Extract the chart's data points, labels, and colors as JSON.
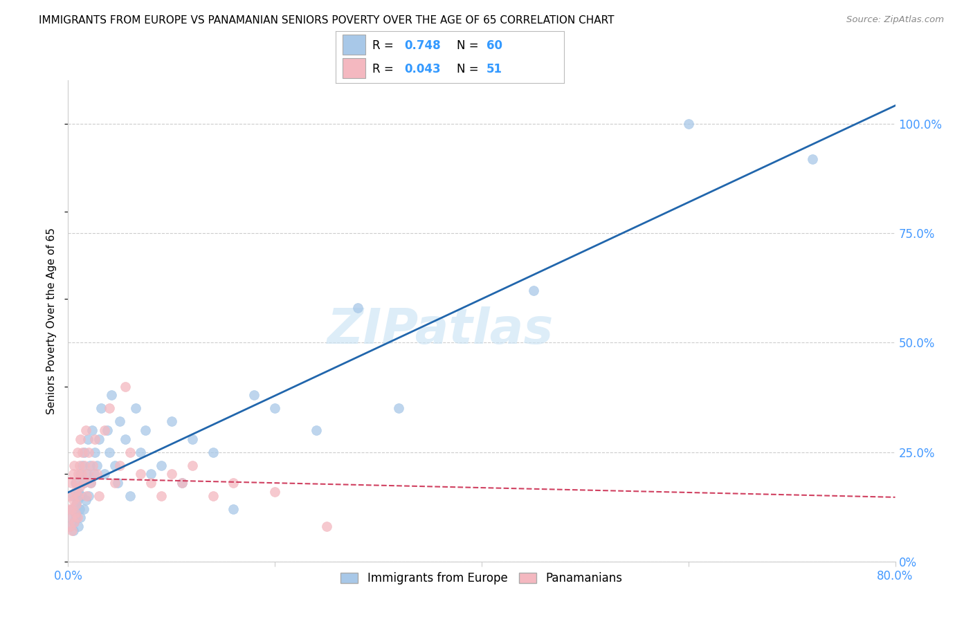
{
  "title": "IMMIGRANTS FROM EUROPE VS PANAMANIAN SENIORS POVERTY OVER THE AGE OF 65 CORRELATION CHART",
  "source": "Source: ZipAtlas.com",
  "ylabel": "Seniors Poverty Over the Age of 65",
  "legend_blue_label": "Immigrants from Europe",
  "legend_pink_label": "Panamanians",
  "r_blue": "0.748",
  "n_blue": "60",
  "r_pink": "0.043",
  "n_pink": "51",
  "blue_color": "#a8c8e8",
  "pink_color": "#f4b8c0",
  "blue_line_color": "#2166ac",
  "pink_line_color": "#d04060",
  "watermark": "ZIPatlas",
  "blue_scatter_x": [
    0.002,
    0.003,
    0.004,
    0.005,
    0.005,
    0.006,
    0.007,
    0.007,
    0.008,
    0.008,
    0.009,
    0.01,
    0.01,
    0.011,
    0.012,
    0.012,
    0.013,
    0.014,
    0.015,
    0.015,
    0.016,
    0.017,
    0.018,
    0.019,
    0.02,
    0.021,
    0.022,
    0.023,
    0.025,
    0.026,
    0.028,
    0.03,
    0.032,
    0.035,
    0.038,
    0.04,
    0.042,
    0.045,
    0.048,
    0.05,
    0.055,
    0.06,
    0.065,
    0.07,
    0.075,
    0.08,
    0.09,
    0.1,
    0.11,
    0.12,
    0.14,
    0.16,
    0.18,
    0.2,
    0.24,
    0.28,
    0.32,
    0.45,
    0.6,
    0.72
  ],
  "blue_scatter_y": [
    0.08,
    0.1,
    0.12,
    0.07,
    0.15,
    0.09,
    0.11,
    0.18,
    0.1,
    0.13,
    0.14,
    0.08,
    0.16,
    0.12,
    0.2,
    0.1,
    0.15,
    0.22,
    0.12,
    0.18,
    0.25,
    0.14,
    0.2,
    0.28,
    0.15,
    0.22,
    0.18,
    0.3,
    0.2,
    0.25,
    0.22,
    0.28,
    0.35,
    0.2,
    0.3,
    0.25,
    0.38,
    0.22,
    0.18,
    0.32,
    0.28,
    0.15,
    0.35,
    0.25,
    0.3,
    0.2,
    0.22,
    0.32,
    0.18,
    0.28,
    0.25,
    0.12,
    0.38,
    0.35,
    0.3,
    0.58,
    0.35,
    0.62,
    1.0,
    0.92
  ],
  "pink_scatter_x": [
    0.001,
    0.002,
    0.002,
    0.003,
    0.003,
    0.004,
    0.004,
    0.005,
    0.005,
    0.006,
    0.006,
    0.007,
    0.007,
    0.008,
    0.008,
    0.009,
    0.009,
    0.01,
    0.01,
    0.011,
    0.011,
    0.012,
    0.013,
    0.014,
    0.015,
    0.016,
    0.017,
    0.018,
    0.019,
    0.02,
    0.022,
    0.024,
    0.026,
    0.028,
    0.03,
    0.035,
    0.04,
    0.045,
    0.05,
    0.055,
    0.06,
    0.07,
    0.08,
    0.09,
    0.1,
    0.11,
    0.12,
    0.14,
    0.16,
    0.2,
    0.25
  ],
  "pink_scatter_y": [
    0.12,
    0.08,
    0.15,
    0.1,
    0.18,
    0.07,
    0.12,
    0.2,
    0.14,
    0.09,
    0.22,
    0.16,
    0.11,
    0.18,
    0.13,
    0.25,
    0.1,
    0.2,
    0.15,
    0.22,
    0.17,
    0.28,
    0.2,
    0.25,
    0.18,
    0.22,
    0.3,
    0.15,
    0.2,
    0.25,
    0.18,
    0.22,
    0.28,
    0.2,
    0.15,
    0.3,
    0.35,
    0.18,
    0.22,
    0.4,
    0.25,
    0.2,
    0.18,
    0.15,
    0.2,
    0.18,
    0.22,
    0.15,
    0.18,
    0.16,
    0.08
  ],
  "xlim": [
    0.0,
    0.8
  ],
  "ylim": [
    0.0,
    1.1
  ],
  "right_ytick_vals": [
    0.0,
    0.25,
    0.5,
    0.75,
    1.0
  ],
  "right_ytick_labels": [
    "0%",
    "25.0%",
    "50.0%",
    "75.0%",
    "100.0%"
  ],
  "xtick_vals": [
    0.0,
    0.2,
    0.4,
    0.6,
    0.8
  ],
  "xtick_labels": [
    "0.0%",
    "",
    "",
    "",
    "80.0%"
  ],
  "grid_color": "#cccccc",
  "background_color": "#ffffff",
  "tick_color": "#4499ff",
  "title_fontsize": 11,
  "axis_label_fontsize": 11,
  "tick_fontsize": 12
}
